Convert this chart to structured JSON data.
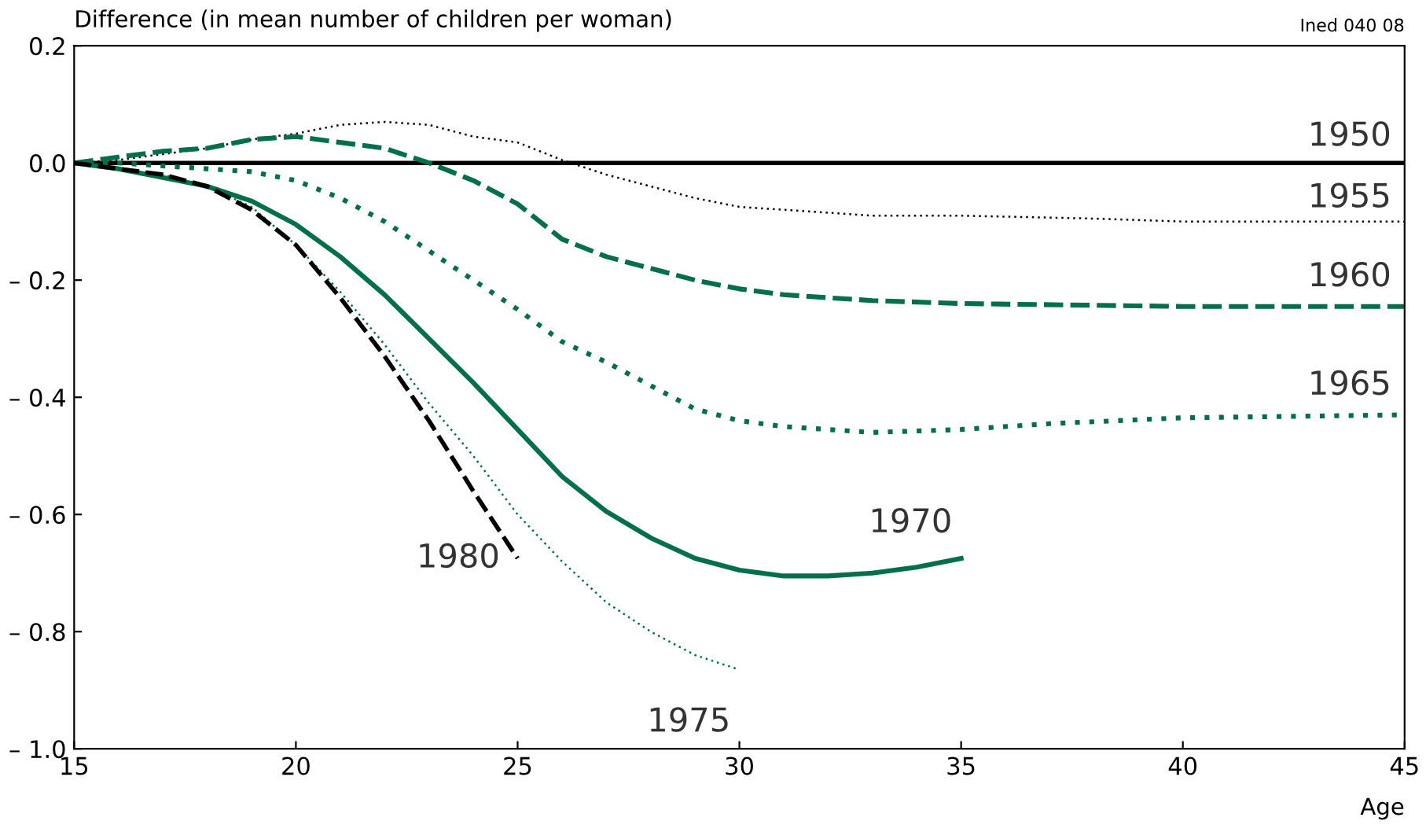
{
  "chart_data": {
    "type": "line",
    "ylabel": "Difference (in mean number of children per woman)",
    "xlabel": "Age",
    "annotations": [
      "Ined 040 08"
    ],
    "xlim": [
      15,
      45
    ],
    "xticks": [
      15,
      20,
      25,
      30,
      35,
      40,
      45
    ],
    "ylim": [
      -1.0,
      0.2
    ],
    "yticks": [
      {
        "value": -1.0,
        "label": "– 1.0"
      },
      {
        "value": -0.8,
        "label": "– 0.8"
      },
      {
        "value": -0.6,
        "label": "– 0.6"
      },
      {
        "value": -0.4,
        "label": "– 0.4"
      },
      {
        "value": -0.2,
        "label": "– 0.2"
      },
      {
        "value": 0.0,
        "label": "0.0"
      },
      {
        "value": 0.2,
        "label": "0.2"
      }
    ],
    "grid": false,
    "legend": false,
    "marker": "none",
    "series": [
      {
        "name": "1950",
        "color": "#000000",
        "line_style": "solid",
        "x": [
          15,
          45
        ],
        "values": [
          0,
          0
        ]
      },
      {
        "name": "1955",
        "color": "#000000",
        "line_style": "dotted",
        "x": [
          15,
          16,
          17,
          18,
          19,
          20,
          21,
          22,
          23,
          24,
          25,
          26,
          27,
          28,
          29,
          30,
          31,
          32,
          33,
          35,
          38,
          40,
          45
        ],
        "values": [
          0,
          0.005,
          0.015,
          0.025,
          0.04,
          0.05,
          0.065,
          0.07,
          0.065,
          0.045,
          0.035,
          0.005,
          -0.02,
          -0.04,
          -0.06,
          -0.075,
          -0.08,
          -0.085,
          -0.09,
          -0.09,
          -0.095,
          -0.1,
          -0.1
        ]
      },
      {
        "name": "1960",
        "color": "#00704a",
        "line_style": "dashed",
        "x": [
          15,
          16,
          17,
          18,
          19,
          20,
          21,
          22,
          23,
          24,
          25,
          26,
          27,
          28,
          29,
          30,
          31,
          32,
          33,
          35,
          40,
          45
        ],
        "values": [
          0,
          0.01,
          0.02,
          0.025,
          0.04,
          0.045,
          0.035,
          0.025,
          0,
          -0.03,
          -0.07,
          -0.13,
          -0.16,
          -0.18,
          -0.2,
          -0.215,
          -0.225,
          -0.23,
          -0.235,
          -0.24,
          -0.245,
          -0.245
        ]
      },
      {
        "name": "1965",
        "color": "#00704a",
        "line_style": "dotted",
        "x": [
          15,
          16,
          17,
          18,
          19,
          20,
          21,
          22,
          23,
          24,
          25,
          26,
          27,
          28,
          29,
          30,
          31,
          32,
          33,
          35,
          37,
          40,
          45
        ],
        "values": [
          0,
          0,
          -0.005,
          -0.01,
          -0.015,
          -0.03,
          -0.06,
          -0.1,
          -0.15,
          -0.2,
          -0.25,
          -0.305,
          -0.34,
          -0.38,
          -0.42,
          -0.44,
          -0.45,
          -0.455,
          -0.46,
          -0.455,
          -0.445,
          -0.435,
          -0.43
        ]
      },
      {
        "name": "1970",
        "color": "#00704a",
        "line_style": "solid",
        "x": [
          15,
          16,
          17,
          18,
          19,
          20,
          21,
          22,
          23,
          24,
          25,
          26,
          27,
          28,
          29,
          30,
          31,
          32,
          33,
          34,
          35
        ],
        "values": [
          0,
          -0.01,
          -0.025,
          -0.04,
          -0.065,
          -0.105,
          -0.16,
          -0.225,
          -0.3,
          -0.375,
          -0.455,
          -0.535,
          -0.595,
          -0.64,
          -0.675,
          -0.695,
          -0.705,
          -0.705,
          -0.7,
          -0.69,
          -0.675
        ]
      },
      {
        "name": "1975",
        "color": "#00704a",
        "line_style": "dotted",
        "x": [
          15,
          16,
          17,
          18,
          19,
          20,
          21,
          22,
          23,
          24,
          25,
          26,
          27,
          28,
          29,
          30
        ],
        "values": [
          0,
          -0.01,
          -0.02,
          -0.04,
          -0.075,
          -0.14,
          -0.22,
          -0.31,
          -0.41,
          -0.5,
          -0.6,
          -0.68,
          -0.75,
          -0.8,
          -0.84,
          -0.865
        ]
      },
      {
        "name": "1980",
        "color": "#000000",
        "line_style": "dashed",
        "x": [
          15,
          16,
          17,
          18,
          19,
          20,
          21,
          22,
          23,
          24,
          25
        ],
        "values": [
          0,
          -0.01,
          -0.02,
          -0.04,
          -0.08,
          -0.14,
          -0.23,
          -0.33,
          -0.44,
          -0.56,
          -0.675
        ]
      }
    ]
  }
}
